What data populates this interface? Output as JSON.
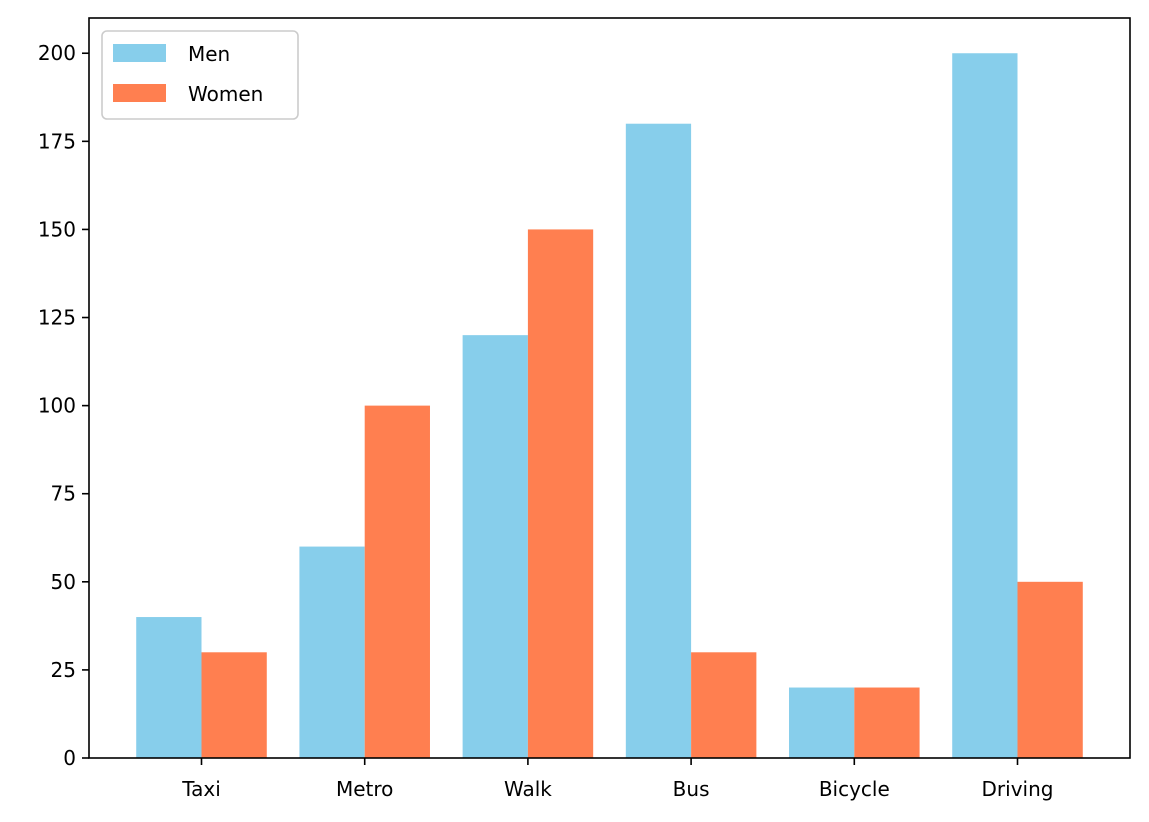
{
  "chart_data": {
    "type": "bar",
    "categories": [
      "Taxi",
      "Metro",
      "Walk",
      "Bus",
      "Bicycle",
      "Driving"
    ],
    "series": [
      {
        "name": "Men",
        "values": [
          40,
          60,
          120,
          180,
          20,
          200
        ],
        "color": "#87CEEB"
      },
      {
        "name": "Women",
        "values": [
          30,
          100,
          150,
          30,
          20,
          50
        ],
        "color": "#FF7F50"
      }
    ],
    "ylim": [
      0,
      210
    ],
    "yticks": [
      0,
      25,
      50,
      75,
      100,
      125,
      150,
      175,
      200
    ],
    "grid": false,
    "legend_position": "top-left"
  }
}
